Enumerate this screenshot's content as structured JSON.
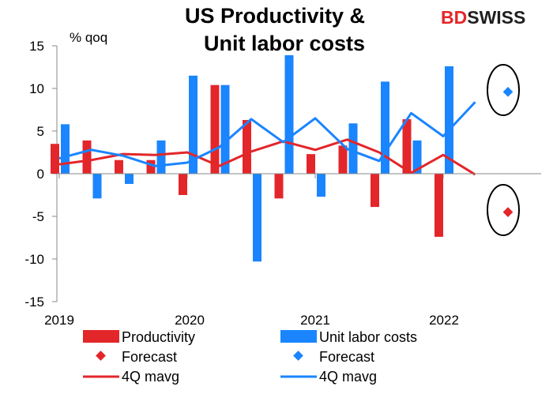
{
  "logo": {
    "part1": "BD",
    "part2": "SWISS"
  },
  "chart_data": {
    "type": "bar",
    "title_lines": [
      "US Productivity &",
      "Unit labor costs"
    ],
    "ylabel": "% qoq",
    "ylim": [
      -15,
      15
    ],
    "yticks": [
      "15",
      "10",
      "5",
      "0",
      "-5",
      "-10",
      "-15"
    ],
    "year_labels": [
      "2019",
      "2020",
      "2021",
      "2022"
    ],
    "colors": {
      "productivity": "#e3262a",
      "ulc": "#1a85ff"
    },
    "quarters": [
      "2019Q1",
      "2019Q2",
      "2019Q3",
      "2019Q4",
      "2020Q1",
      "2020Q2",
      "2020Q3",
      "2020Q4",
      "2021Q1",
      "2021Q2",
      "2021Q3",
      "2021Q4",
      "2022Q1",
      "2022Q2",
      "2022Q3"
    ],
    "series": [
      {
        "name": "Productivity",
        "kind": "bar",
        "values": [
          3.5,
          3.9,
          1.6,
          1.6,
          -2.5,
          10.4,
          6.3,
          -2.9,
          2.3,
          3.3,
          -3.9,
          6.4,
          -7.4,
          null,
          null
        ]
      },
      {
        "name": "Unit labor costs",
        "kind": "bar",
        "values": [
          5.8,
          -2.9,
          -1.2,
          3.9,
          11.5,
          10.4,
          -10.3,
          13.9,
          -2.7,
          5.9,
          10.8,
          3.9,
          12.6,
          null,
          null
        ]
      },
      {
        "name": "Forecast",
        "kind": "marker",
        "of": "Productivity",
        "x": "2022Q3",
        "value": -4.5
      },
      {
        "name": "Forecast",
        "kind": "marker",
        "of": "Unit labor costs",
        "x": "2022Q3",
        "value": 9.6
      },
      {
        "name": "4Q mavg",
        "kind": "line",
        "of": "Productivity",
        "values": [
          1.1,
          1.6,
          2.3,
          2.2,
          2.5,
          0.9,
          2.6,
          3.8,
          2.8,
          4.0,
          2.5,
          0.1,
          2.2,
          -0.1,
          null
        ]
      },
      {
        "name": "4Q mavg",
        "kind": "line",
        "of": "Unit labor costs",
        "values": [
          1.8,
          2.8,
          2.1,
          0.9,
          1.3,
          3.1,
          6.4,
          3.7,
          6.5,
          2.9,
          1.5,
          7.1,
          4.4,
          8.4,
          null
        ]
      }
    ],
    "legend": {
      "position": "bottom",
      "items": [
        {
          "label": "Productivity",
          "marker": "bar",
          "color": "#e3262a"
        },
        {
          "label": "Unit labor costs",
          "marker": "bar",
          "color": "#1a85ff"
        },
        {
          "label": "Forecast",
          "marker": "diamond",
          "color": "#e3262a"
        },
        {
          "label": "Forecast",
          "marker": "diamond",
          "color": "#1a85ff"
        },
        {
          "label": "4Q mavg",
          "marker": "line",
          "color": "#e3262a"
        },
        {
          "label": "4Q mavg",
          "marker": "line",
          "color": "#1a85ff"
        }
      ]
    },
    "annotations": [
      {
        "kind": "ellipse-highlight",
        "around": "Unit labor costs forecast"
      },
      {
        "kind": "ellipse-highlight",
        "around": "Productivity forecast"
      }
    ]
  }
}
